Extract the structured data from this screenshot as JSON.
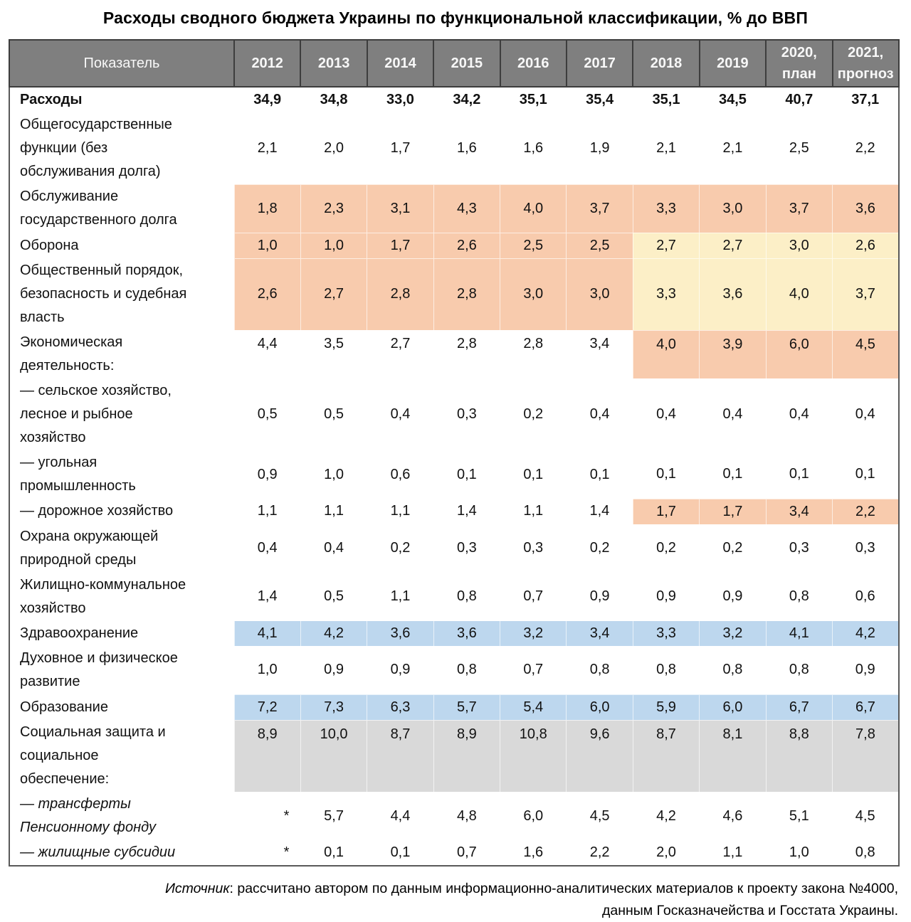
{
  "title": "Расходы сводного бюджета Украины по функциональной классификации, % до ВВП",
  "colors": {
    "peach": "#F8CBAD",
    "yellow": "#FCEFC7",
    "blue": "#BDD7EE",
    "gray": "#D9D9D9",
    "header_bg": "#7F7F7F",
    "header_text": "#F8F8F8",
    "none": ""
  },
  "table": {
    "indicator_label": "Показатель",
    "columns": [
      "2012",
      "2013",
      "2014",
      "2015",
      "2016",
      "2017",
      "2018",
      "2019",
      "2020,\nплан",
      "2021,\nпрогноз"
    ],
    "rows": [
      {
        "label": "Расходы",
        "values": [
          "34,9",
          "34,8",
          "33,0",
          "34,2",
          "35,1",
          "35,4",
          "35,1",
          "34,5",
          "40,7",
          "37,1"
        ],
        "bg": [
          "none",
          "none",
          "none",
          "none",
          "none",
          "none",
          "none",
          "none",
          "none",
          "none"
        ],
        "style": "bold"
      },
      {
        "label": "Общегосударственные\nфункции (без\nобслуживания долга)",
        "values": [
          "2,1",
          "2,0",
          "1,7",
          "1,6",
          "1,6",
          "1,9",
          "2,1",
          "2,1",
          "2,5",
          "2,2"
        ],
        "bg": [
          "none",
          "none",
          "none",
          "none",
          "none",
          "none",
          "none",
          "none",
          "none",
          "none"
        ],
        "style": "normal"
      },
      {
        "label": "Обслуживание\nгосударственного долга",
        "values": [
          "1,8",
          "2,3",
          "3,1",
          "4,3",
          "4,0",
          "3,7",
          "3,3",
          "3,0",
          "3,7",
          "3,6"
        ],
        "bg": [
          "peach",
          "peach",
          "peach",
          "peach",
          "peach",
          "peach",
          "peach",
          "peach",
          "peach",
          "peach"
        ],
        "style": "normal"
      },
      {
        "label": "Оборона",
        "values": [
          "1,0",
          "1,0",
          "1,7",
          "2,6",
          "2,5",
          "2,5",
          "2,7",
          "2,7",
          "3,0",
          "2,6"
        ],
        "bg": [
          "peach",
          "peach",
          "peach",
          "peach",
          "peach",
          "peach",
          "yellow",
          "yellow",
          "yellow",
          "yellow"
        ],
        "style": "normal"
      },
      {
        "label": "Общественный порядок,\nбезопасность и судебная\nвласть",
        "values": [
          "2,6",
          "2,7",
          "2,8",
          "2,8",
          "3,0",
          "3,0",
          "3,3",
          "3,6",
          "4,0",
          "3,7"
        ],
        "bg": [
          "peach",
          "peach",
          "peach",
          "peach",
          "peach",
          "peach",
          "yellow",
          "yellow",
          "yellow",
          "yellow"
        ],
        "style": "normal"
      },
      {
        "label": "Экономическая\nдеятельность:",
        "values": [
          "4,4",
          "3,5",
          "2,7",
          "2,8",
          "2,8",
          "3,4",
          "4,0",
          "3,9",
          "6,0",
          "4,5"
        ],
        "bg": [
          "none",
          "none",
          "none",
          "none",
          "none",
          "none",
          "peach",
          "peach",
          "peach",
          "peach"
        ],
        "style": "normal",
        "valign": "top"
      },
      {
        "label": "— сельское хозяйство,\nлесное и рыбное\nхозяйство",
        "values": [
          "0,5",
          "0,5",
          "0,4",
          "0,3",
          "0,2",
          "0,4",
          "0,4",
          "0,4",
          "0,4",
          "0,4"
        ],
        "bg": [
          "none",
          "none",
          "none",
          "none",
          "none",
          "none",
          "none",
          "none",
          "none",
          "none"
        ],
        "style": "normal"
      },
      {
        "label": "— угольная\nпромышленность",
        "values": [
          "0,9",
          "1,0",
          "0,6",
          "0,1",
          "0,1",
          "0,1",
          "0,1",
          "0,1",
          "0,1",
          "0,1"
        ],
        "bg": [
          "none",
          "none",
          "none",
          "none",
          "none",
          "none",
          "none",
          "none",
          "none",
          "none"
        ],
        "style": "normal"
      },
      {
        "label": "— дорожное хозяйство",
        "values": [
          "1,1",
          "1,1",
          "1,1",
          "1,4",
          "1,1",
          "1,4",
          "1,7",
          "1,7",
          "3,4",
          "2,2"
        ],
        "bg": [
          "none",
          "none",
          "none",
          "none",
          "none",
          "none",
          "peach",
          "peach",
          "peach",
          "peach"
        ],
        "style": "normal"
      },
      {
        "label": "Охрана окружающей\nприродной среды",
        "values": [
          "0,4",
          "0,4",
          "0,2",
          "0,3",
          "0,3",
          "0,2",
          "0,2",
          "0,2",
          "0,3",
          "0,3"
        ],
        "bg": [
          "none",
          "none",
          "none",
          "none",
          "none",
          "none",
          "none",
          "none",
          "none",
          "none"
        ],
        "style": "normal"
      },
      {
        "label": "Жилищно-коммунальное\nхозяйство",
        "values": [
          "1,4",
          "0,5",
          "1,1",
          "0,8",
          "0,7",
          "0,9",
          "0,9",
          "0,9",
          "0,8",
          "0,6"
        ],
        "bg": [
          "none",
          "none",
          "none",
          "none",
          "none",
          "none",
          "none",
          "none",
          "none",
          "none"
        ],
        "style": "normal"
      },
      {
        "label": "Здравоохранение",
        "values": [
          "4,1",
          "4,2",
          "3,6",
          "3,6",
          "3,2",
          "3,4",
          "3,3",
          "3,2",
          "4,1",
          "4,2"
        ],
        "bg": [
          "blue",
          "blue",
          "blue",
          "blue",
          "blue",
          "blue",
          "blue",
          "blue",
          "blue",
          "blue"
        ],
        "style": "normal"
      },
      {
        "label": "Духовное и физическое\nразвитие",
        "values": [
          "1,0",
          "0,9",
          "0,9",
          "0,8",
          "0,7",
          "0,8",
          "0,8",
          "0,8",
          "0,8",
          "0,9"
        ],
        "bg": [
          "none",
          "none",
          "none",
          "none",
          "none",
          "none",
          "none",
          "none",
          "none",
          "none"
        ],
        "style": "normal"
      },
      {
        "label": "Образование",
        "values": [
          "7,2",
          "7,3",
          "6,3",
          "5,7",
          "5,4",
          "6,0",
          "5,9",
          "6,0",
          "6,7",
          "6,7"
        ],
        "bg": [
          "blue",
          "blue",
          "blue",
          "blue",
          "blue",
          "blue",
          "blue",
          "blue",
          "blue",
          "blue"
        ],
        "style": "normal"
      },
      {
        "label": "Социальная защита и\nсоциальное\nобеспечение:",
        "values": [
          "8,9",
          "10,0",
          "8,7",
          "8,9",
          "10,8",
          "9,6",
          "8,7",
          "8,1",
          "8,8",
          "7,8"
        ],
        "bg": [
          "gray",
          "gray",
          "gray",
          "gray",
          "gray",
          "gray",
          "gray",
          "gray",
          "gray",
          "gray"
        ],
        "style": "normal",
        "valign": "top"
      },
      {
        "label": "— трансферты\nПенсионному фонду",
        "values": [
          "*",
          "5,7",
          "4,4",
          "4,8",
          "6,0",
          "4,5",
          "4,2",
          "4,6",
          "5,1",
          "4,5"
        ],
        "bg": [
          "none",
          "none",
          "none",
          "none",
          "none",
          "none",
          "none",
          "none",
          "none",
          "none"
        ],
        "style": "italic"
      },
      {
        "label": "— жилищные субсидии",
        "values": [
          "*",
          "0,1",
          "0,1",
          "0,7",
          "1,6",
          "2,2",
          "2,0",
          "1,1",
          "1,0",
          "0,8"
        ],
        "bg": [
          "none",
          "none",
          "none",
          "none",
          "none",
          "none",
          "none",
          "none",
          "none",
          "none"
        ],
        "style": "italic"
      }
    ]
  },
  "footer": {
    "source_label": "Источник",
    "text": ": рассчитано автором по данным информационно-аналитических материалов к проекту закона №4000,\nданным Госказначейства и Госстата Украины."
  }
}
